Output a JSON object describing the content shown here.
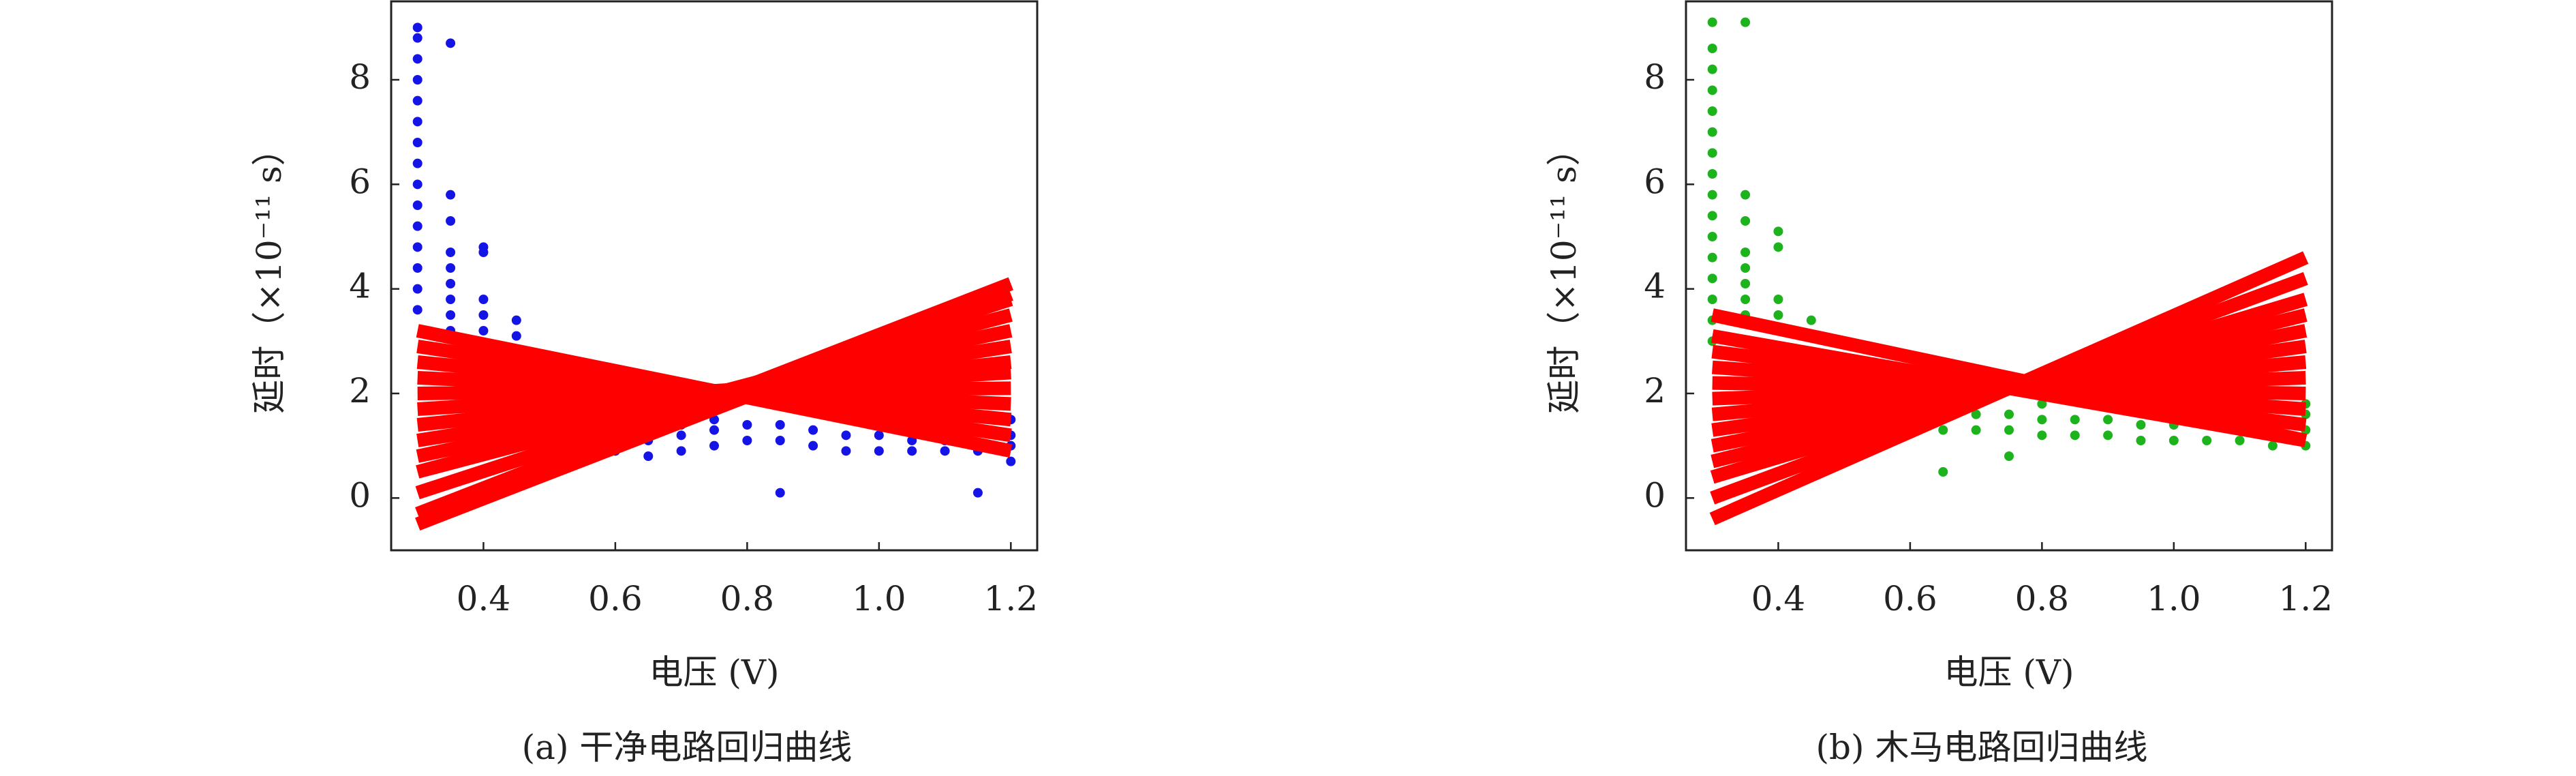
{
  "chart_data": [
    {
      "type": "scatter",
      "title": "(a) 干净电路回归曲线",
      "xlabel": "电压 (V)",
      "ylabel": "延时（×10⁻¹¹ s）",
      "xlim": [
        0.26,
        1.24
      ],
      "ylim": [
        -1,
        9.5
      ],
      "xticks": [
        0.4,
        0.6,
        0.8,
        {
          "value": 1.0,
          "label": "1.0"
        },
        1.2
      ],
      "yticks": [
        0,
        2,
        4,
        6,
        8
      ],
      "series": [
        {
          "color": "#1414e6",
          "x": [
            0.3,
            0.3,
            0.3,
            0.3,
            0.3,
            0.3,
            0.3,
            0.3,
            0.3,
            0.3,
            0.3,
            0.3,
            0.3,
            0.3,
            0.3,
            0.35,
            0.35,
            0.35,
            0.35,
            0.35,
            0.35,
            0.35,
            0.35,
            0.35,
            0.4,
            0.4,
            0.4,
            0.4,
            0.4,
            0.4,
            0.4,
            0.45,
            0.45,
            0.45,
            0.5,
            0.55,
            0.55,
            0.6,
            0.65,
            0.65,
            0.65,
            0.7,
            0.7,
            0.7,
            0.75,
            0.75,
            0.75,
            0.8,
            0.8,
            0.85,
            0.85,
            0.85,
            0.9,
            0.9,
            0.95,
            0.95,
            1.0,
            1.0,
            1.05,
            1.05,
            1.1,
            1.1,
            1.15,
            1.15,
            1.2,
            1.2,
            1.2,
            1.2
          ],
          "values": [
            3.6,
            4.0,
            4.4,
            4.8,
            5.2,
            5.6,
            6.0,
            6.4,
            6.8,
            7.2,
            7.6,
            8.0,
            8.4,
            8.8,
            9.0,
            3.2,
            3.5,
            3.8,
            4.1,
            4.4,
            4.7,
            5.3,
            5.8,
            8.7,
            2.6,
            2.9,
            3.2,
            3.5,
            3.8,
            4.7,
            4.8,
            2.8,
            3.1,
            3.4,
            2.6,
            0.9,
            1.1,
            0.9,
            0.8,
            1.1,
            1.3,
            0.9,
            1.2,
            1.4,
            1.0,
            1.3,
            1.5,
            1.1,
            1.4,
            0.1,
            1.1,
            1.4,
            1.0,
            1.3,
            0.9,
            1.2,
            0.9,
            1.2,
            0.9,
            1.1,
            0.9,
            1.1,
            0.1,
            0.9,
            0.7,
            1.0,
            1.2,
            1.5
          ]
        }
      ],
      "fit_color": "#ff0000",
      "fit_x": [
        0.3,
        1.2
      ],
      "fits": [
        [
          3.2,
          0.9
        ],
        [
          2.9,
          1.2
        ],
        [
          2.6,
          1.5
        ],
        [
          2.3,
          1.8
        ],
        [
          2.0,
          2.1
        ],
        [
          1.7,
          2.4
        ],
        [
          1.4,
          2.6
        ],
        [
          1.1,
          2.9
        ],
        [
          0.8,
          3.2
        ],
        [
          0.5,
          3.5
        ],
        [
          0.1,
          3.8
        ],
        [
          -0.3,
          4.1
        ],
        [
          -0.5,
          3.9
        ]
      ]
    },
    {
      "type": "scatter",
      "title": "(b) 木马电路回归曲线",
      "xlabel": "电压 (V)",
      "ylabel": "延时（×10⁻¹¹ s）",
      "xlim": [
        0.26,
        1.24
      ],
      "ylim": [
        -1,
        9.5
      ],
      "xticks": [
        0.4,
        0.6,
        0.8,
        {
          "value": 1.0,
          "label": "1.0"
        },
        1.2
      ],
      "yticks": [
        0,
        2,
        4,
        6,
        8
      ],
      "series": [
        {
          "color": "#1db31d",
          "x": [
            0.3,
            0.3,
            0.3,
            0.3,
            0.3,
            0.3,
            0.3,
            0.3,
            0.3,
            0.3,
            0.3,
            0.3,
            0.3,
            0.3,
            0.3,
            0.3,
            0.35,
            0.35,
            0.35,
            0.35,
            0.35,
            0.35,
            0.35,
            0.35,
            0.4,
            0.4,
            0.4,
            0.4,
            0.4,
            0.4,
            0.45,
            0.45,
            0.6,
            0.65,
            0.65,
            0.65,
            0.7,
            0.7,
            0.75,
            0.75,
            0.75,
            0.8,
            0.8,
            0.8,
            0.85,
            0.85,
            0.9,
            0.9,
            0.95,
            0.95,
            1.0,
            1.0,
            1.05,
            1.1,
            1.15,
            1.15,
            1.2,
            1.2,
            1.2,
            1.2
          ],
          "values": [
            3.0,
            3.4,
            3.8,
            4.2,
            4.6,
            5.0,
            5.4,
            5.8,
            6.2,
            6.6,
            7.0,
            7.4,
            7.8,
            8.2,
            8.6,
            9.1,
            3.5,
            3.8,
            4.1,
            4.4,
            4.7,
            5.3,
            5.8,
            9.1,
            2.9,
            3.2,
            3.5,
            3.8,
            4.8,
            5.1,
            2.8,
            3.4,
            1.6,
            0.5,
            1.3,
            1.6,
            1.3,
            1.6,
            0.8,
            1.3,
            1.6,
            1.2,
            1.5,
            1.8,
            1.2,
            1.5,
            1.2,
            1.5,
            1.1,
            1.4,
            1.1,
            1.4,
            1.1,
            1.1,
            1.0,
            1.3,
            1.0,
            1.3,
            1.6,
            1.8
          ]
        }
      ],
      "fit_color": "#ff0000",
      "fit_x": [
        0.3,
        1.2
      ],
      "fits": [
        [
          3.1,
          1.1
        ],
        [
          2.8,
          1.4
        ],
        [
          2.5,
          1.7
        ],
        [
          2.2,
          2.0
        ],
        [
          1.9,
          2.3
        ],
        [
          1.6,
          2.6
        ],
        [
          1.3,
          2.9
        ],
        [
          1.0,
          3.2
        ],
        [
          0.7,
          3.5
        ],
        [
          0.4,
          3.8
        ],
        [
          0.0,
          4.2
        ],
        [
          -0.4,
          4.6
        ],
        [
          3.5,
          1.1
        ]
      ]
    }
  ]
}
